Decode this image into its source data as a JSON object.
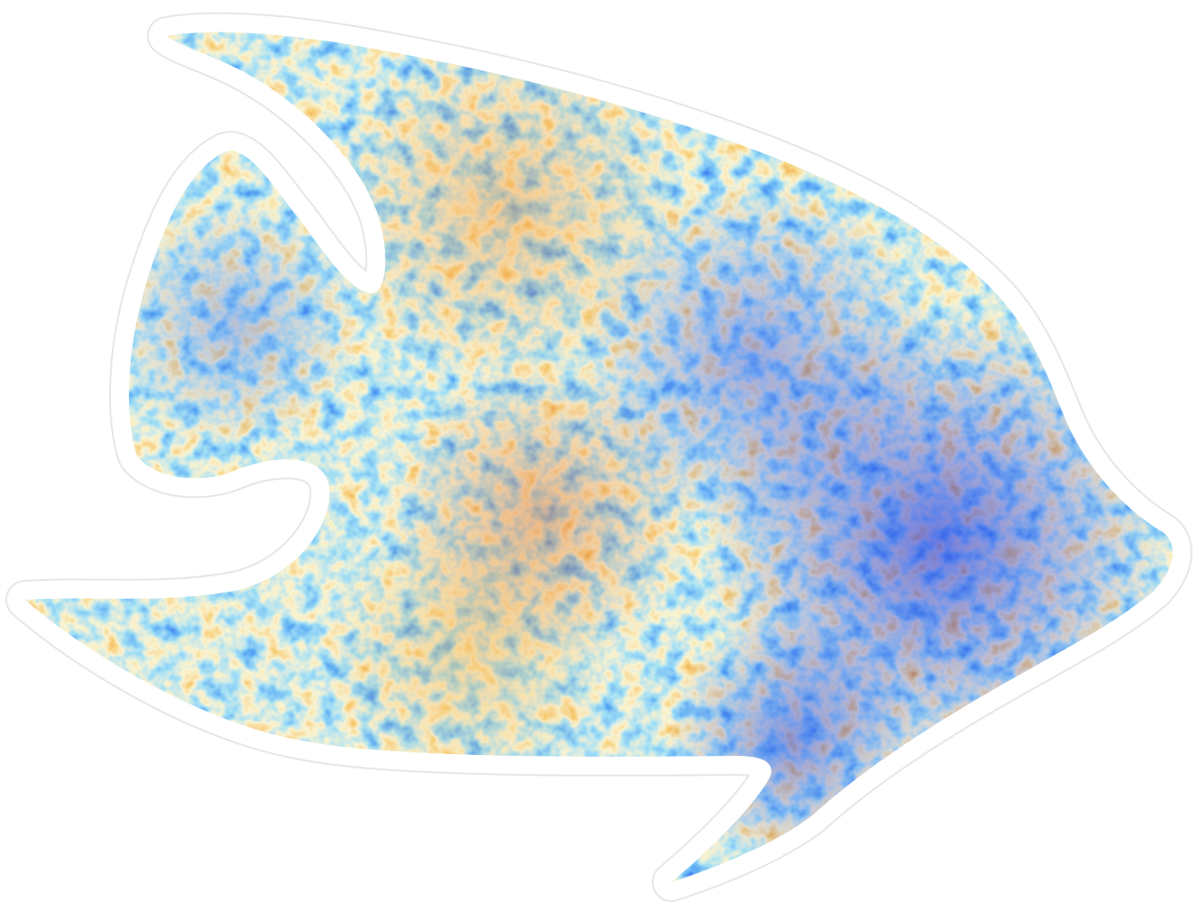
{
  "image": {
    "subject": "fish-silhouette",
    "fill_pattern": "cmb-temperature-noise",
    "background_color": "#ffffff",
    "outline_color": "#ffffff",
    "outline_edge_color": "#e6e6e6",
    "palette": {
      "deep_blue": "#0a1fe0",
      "blue": "#1e6fe8",
      "light_blue": "#5fbfe8",
      "pale": "#f2e6a0",
      "orange": "#f0a030",
      "dark_orange": "#c8500c"
    }
  }
}
